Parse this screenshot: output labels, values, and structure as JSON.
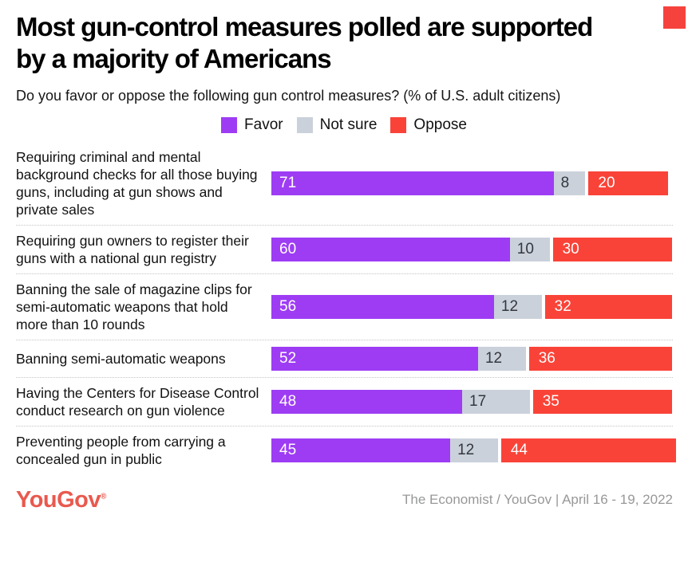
{
  "header": {
    "title_line1": "Most gun-control measures polled are supported",
    "title_line2": "by a majority of Americans",
    "subtitle": "Do you favor or oppose the following gun control measures? (% of U.S. adult citizens)"
  },
  "chart_data": {
    "type": "bar",
    "orientation": "horizontal",
    "stacked": true,
    "title": "Most gun-control measures polled are supported by a majority of Americans",
    "subtitle": "Do you favor or oppose the following gun control measures? (% of U.S. adult citizens)",
    "categories": [
      "Requiring criminal and mental background checks for all those buying guns, including at gun shows and private sales",
      "Requiring gun owners to register their guns with a national gun registry",
      "Banning the sale of magazine clips for semi-automatic weapons that hold more than 10 rounds",
      "Banning semi-automatic weapons",
      "Having the Centers for Disease Control conduct research on gun violence",
      "Preventing people from carrying a concealed gun in public"
    ],
    "series": [
      {
        "name": "Favor",
        "color": "#9e3cf4",
        "values": [
          71,
          60,
          56,
          52,
          48,
          45
        ]
      },
      {
        "name": "Not sure",
        "color": "#cbd1db",
        "values": [
          8,
          10,
          12,
          12,
          17,
          12
        ]
      },
      {
        "name": "Oppose",
        "color": "#fa4338",
        "values": [
          20,
          30,
          32,
          36,
          35,
          44
        ]
      }
    ],
    "xlim": [
      0,
      100
    ],
    "value_unit": "%",
    "grid": false,
    "legend_position": "top-center",
    "value_labels": "inside-start"
  },
  "branding": {
    "corner_square_color": "#f6423c"
  },
  "footer": {
    "logo_text": "YouGov",
    "logo_mark": "®",
    "credit": "The Economist / YouGov | April 16 - 19, 2022"
  }
}
